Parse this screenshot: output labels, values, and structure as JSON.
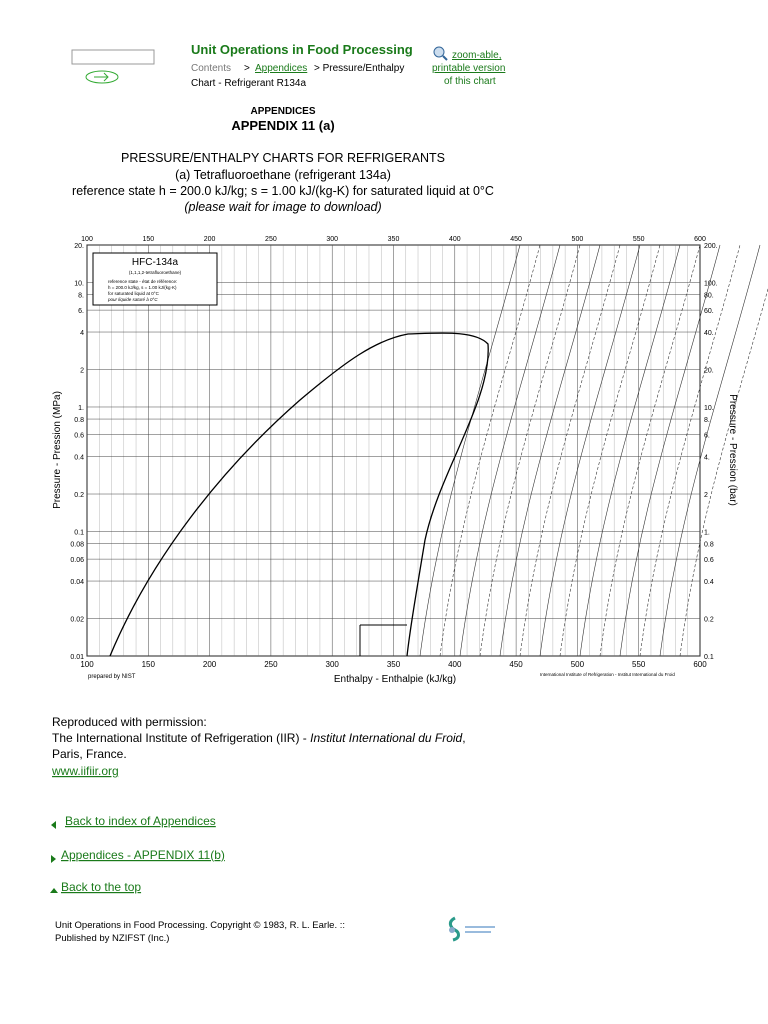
{
  "header": {
    "title": "Unit Operations in Food Processing",
    "breadcrumb": {
      "contents": "Contents",
      "separator": ">",
      "appendices": "Appendices",
      "current_1": "> Pressure/Enthalpy",
      "current_2": "Chart - Refrigerant R134a"
    },
    "zoom_link": [
      "zoom-able,",
      "printable version"
    ],
    "zoom_note": "of this chart"
  },
  "heading": {
    "section": "APPENDICES",
    "appendix": "APPENDIX 11 (a)",
    "lines": [
      "PRESSURE/ENTHALPY CHARTS FOR REFRIGERANTS",
      "(a) Tetrafluoroethane (refrigerant 134a)",
      "reference state h = 200.0 kJ/kg; s = 1.00 kJ/(kg-K) for saturated liquid at 0°C",
      "(please wait for image to download)"
    ]
  },
  "figure": {
    "x_ticks": [
      "100",
      "150",
      "200",
      "250",
      "300",
      "350",
      "400",
      "450",
      "500",
      "550",
      "600"
    ],
    "left_ticks": [
      "20.",
      "10.",
      "8.",
      "6.",
      "4",
      "2",
      "1.",
      "0.8",
      "0.6",
      "0.4",
      "0.2",
      "0.1",
      "0.08",
      "0.06",
      "0.04",
      "0.02",
      "0.01"
    ],
    "right_ticks": [
      "200.",
      "100.",
      "80.",
      "60.",
      "40.",
      "20.",
      "10.",
      "8.",
      "6.",
      "4.",
      "2",
      "1.",
      "0.8",
      "0.6",
      "0.4",
      "0.2",
      "0.1"
    ],
    "x_label": "Enthalpy - Enthalpie (kJ/kg)",
    "left_label": "Pressure - Pression (MPa)",
    "right_label": "Pressure - Pression (bar)",
    "box": {
      "name": "HFC-134a",
      "chemical": "(1,1,1,2-tetrafluoroethane)",
      "ref_1": "reference state - état de référence:",
      "ref_2": "h = 200.0 kJ/kg, s = 1.00 kJ/(kg·K)",
      "ref_3": "for saturated liquid at 0°C",
      "ref_4": "pour liquide saturé à 0°C"
    },
    "credit_left": "prepared by NIST",
    "credit_right": "International Institute of Refrigeration - Institut International du Froid"
  },
  "permission": {
    "line_1": "Reproduced with permission:",
    "line_2": "The International Institute of Refrigeration (IIR) - ",
    "line_2_italic": "Institut International du Froid",
    "line_2_end": ",",
    "line_3": "Paris, France.",
    "link": "www.iifiir.org"
  },
  "nav": [
    "Back to index of Appendices",
    "Appendices - APPENDIX 11(b)",
    "Back to the top"
  ],
  "footer": {
    "line_1": "Unit Operations in Food Processing. Copyright © 1983, R. L. Earle. ::",
    "line_2": "Published by NZIFST (Inc.)"
  }
}
